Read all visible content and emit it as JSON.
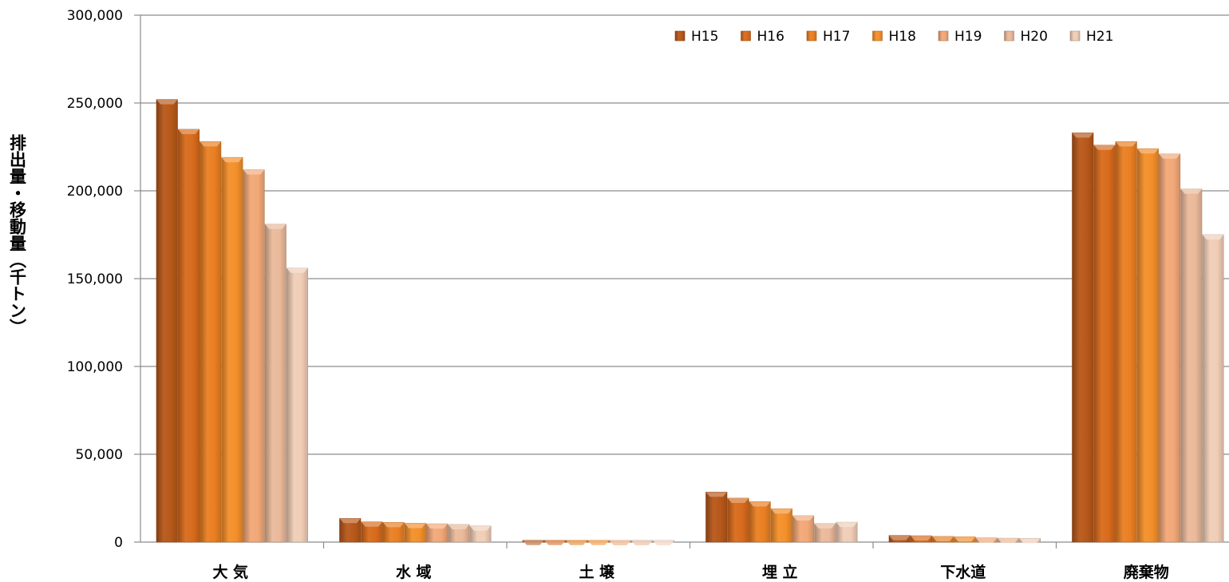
{
  "chart_data": {
    "type": "bar",
    "ylabel": "排出量・移動量（千トン）",
    "xlabel": "",
    "ylim": [
      0,
      300000
    ],
    "yticks": [
      "0",
      "50,000",
      "100,000",
      "150,000",
      "200,000",
      "250,000",
      "300,000"
    ],
    "ytick_values": [
      0,
      50000,
      100000,
      150000,
      200000,
      250000,
      300000
    ],
    "grid": true,
    "legend_position": "top-right",
    "categories": [
      "大 気",
      "水 域",
      "土 壌",
      "埋 立",
      "下水道",
      "廃棄物"
    ],
    "series": [
      {
        "name": "H15",
        "color": "#b7581a",
        "values": [
          252000,
          13500,
          1000,
          28500,
          3800,
          233000
        ]
      },
      {
        "name": "H16",
        "color": "#d86b1c",
        "values": [
          235000,
          11500,
          1000,
          25000,
          3600,
          226000
        ]
      },
      {
        "name": "H17",
        "color": "#ea7f22",
        "values": [
          228000,
          11200,
          1000,
          23000,
          3200,
          228000
        ]
      },
      {
        "name": "H18",
        "color": "#f48f2a",
        "values": [
          219000,
          10700,
          1000,
          19000,
          3000,
          224000
        ]
      },
      {
        "name": "H19",
        "color": "#f2a877",
        "values": [
          212000,
          10400,
          900,
          15000,
          2400,
          221000
        ]
      },
      {
        "name": "H20",
        "color": "#eab99a",
        "values": [
          181000,
          10000,
          900,
          10500,
          2200,
          201000
        ]
      },
      {
        "name": "H21",
        "color": "#f0cdb6",
        "values": [
          156000,
          9200,
          900,
          11300,
          2100,
          175000
        ]
      }
    ]
  }
}
